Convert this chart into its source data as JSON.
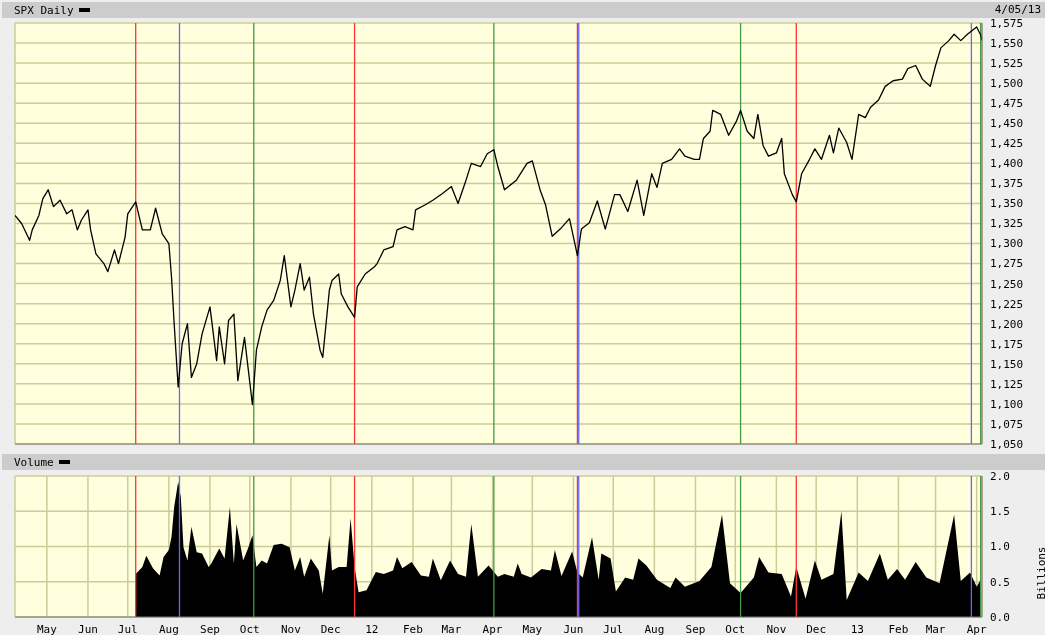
{
  "chart_data": [
    {
      "type": "line",
      "legend": "top left",
      "grid": true,
      "tick_labels": "y",
      "annotations": [
        "4/05/13"
      ],
      "xlim": [
        "2011-04-07",
        "2013-04-05"
      ],
      "xticks": [
        {
          "value": "2011-05-01",
          "label": null
        },
        {
          "value": "2011-06-01",
          "label": null
        },
        {
          "value": "2011-07-01",
          "label": null
        },
        {
          "value": "2011-08-01",
          "label": null
        },
        {
          "value": "2011-09-01",
          "label": null
        },
        {
          "value": "2011-10-01",
          "label": null
        },
        {
          "value": "2011-11-01",
          "label": null
        },
        {
          "value": "2011-12-01",
          "label": null
        },
        {
          "value": "2012-01-01",
          "label": null
        },
        {
          "value": "2012-02-01",
          "label": null
        },
        {
          "value": "2012-03-01",
          "label": null
        },
        {
          "value": "2012-04-01",
          "label": null
        },
        {
          "value": "2012-05-01",
          "label": null
        },
        {
          "value": "2012-06-01",
          "label": null
        },
        {
          "value": "2012-07-01",
          "label": null
        },
        {
          "value": "2012-08-01",
          "label": null
        },
        {
          "value": "2012-09-01",
          "label": null
        },
        {
          "value": "2012-10-01",
          "label": null
        },
        {
          "value": "2012-11-01",
          "label": null
        },
        {
          "value": "2012-12-01",
          "label": null
        },
        {
          "value": "2013-01-01",
          "label": null
        },
        {
          "value": "2013-02-01",
          "label": null
        },
        {
          "value": "2013-03-01",
          "label": null
        },
        {
          "value": "2013-04-01",
          "label": null
        }
      ],
      "ylim": [
        1050,
        1575
      ],
      "yticks": [
        {
          "value": 1050,
          "label": "1,050"
        },
        {
          "value": 1075,
          "label": "1,075"
        },
        {
          "value": 1100,
          "label": "1,100"
        },
        {
          "value": 1125,
          "label": "1,125"
        },
        {
          "value": 1150,
          "label": "1,150"
        },
        {
          "value": 1175,
          "label": "1,175"
        },
        {
          "value": 1200,
          "label": "1,200"
        },
        {
          "value": 1225,
          "label": "1,225"
        },
        {
          "value": 1250,
          "label": "1,250"
        },
        {
          "value": 1275,
          "label": "1,275"
        },
        {
          "value": 1300,
          "label": "1,300"
        },
        {
          "value": 1325,
          "label": "1,325"
        },
        {
          "value": 1350,
          "label": "1,350"
        },
        {
          "value": 1375,
          "label": "1,375"
        },
        {
          "value": 1400,
          "label": "1,400"
        },
        {
          "value": 1425,
          "label": "1,425"
        },
        {
          "value": 1450,
          "label": "1,450"
        },
        {
          "value": 1475,
          "label": "1,475"
        },
        {
          "value": 1500,
          "label": "1,500"
        },
        {
          "value": 1525,
          "label": "1,525"
        },
        {
          "value": 1550,
          "label": "1,550"
        },
        {
          "value": 1575,
          "label": "1,575"
        }
      ],
      "ref_lines": [
        {
          "axis": "x",
          "value": "2011-07-07",
          "color": "#ff3333"
        },
        {
          "axis": "x",
          "value": "2011-08-09",
          "color": "#6666ff"
        },
        {
          "axis": "x",
          "value": "2011-10-04",
          "color": "#449944"
        },
        {
          "axis": "x",
          "value": "2011-12-19",
          "color": "#ff3333"
        },
        {
          "axis": "x",
          "value": "2012-04-02",
          "color": "#449944"
        },
        {
          "axis": "x",
          "value": "2012-06-04",
          "color": "#ff3333"
        },
        {
          "axis": "x",
          "value": "2012-06-05",
          "color": "#6666ff"
        },
        {
          "axis": "x",
          "value": "2012-10-05",
          "color": "#449944"
        },
        {
          "axis": "x",
          "value": "2012-11-16",
          "color": "#ff3333"
        },
        {
          "axis": "x",
          "value": "2013-03-28",
          "color": "#6666ff"
        },
        {
          "axis": "x",
          "value": "2013-04-04",
          "color": "#449944"
        }
      ],
      "series": [
        {
          "name": "SPX Daily",
          "color": "#000000",
          "x": [
            "2011-04-07",
            "2011-04-12",
            "2011-04-18",
            "2011-04-20",
            "2011-04-25",
            "2011-04-28",
            "2011-05-02",
            "2011-05-06",
            "2011-05-11",
            "2011-05-16",
            "2011-05-20",
            "2011-05-24",
            "2011-05-27",
            "2011-06-01",
            "2011-06-03",
            "2011-06-07",
            "2011-06-13",
            "2011-06-16",
            "2011-06-21",
            "2011-06-24",
            "2011-06-29",
            "2011-07-01",
            "2011-07-07",
            "2011-07-12",
            "2011-07-18",
            "2011-07-22",
            "2011-07-27",
            "2011-08-01",
            "2011-08-03",
            "2011-08-05",
            "2011-08-08",
            "2011-08-11",
            "2011-08-15",
            "2011-08-18",
            "2011-08-22",
            "2011-08-26",
            "2011-09-01",
            "2011-09-06",
            "2011-09-08",
            "2011-09-12",
            "2011-09-15",
            "2011-09-19",
            "2011-09-22",
            "2011-09-27",
            "2011-10-03",
            "2011-10-06",
            "2011-10-10",
            "2011-10-14",
            "2011-10-19",
            "2011-10-24",
            "2011-10-27",
            "2011-11-01",
            "2011-11-04",
            "2011-11-08",
            "2011-11-11",
            "2011-11-15",
            "2011-11-18",
            "2011-11-23",
            "2011-11-25",
            "2011-11-30",
            "2011-12-02",
            "2011-12-07",
            "2011-12-09",
            "2011-12-14",
            "2011-12-19",
            "2011-12-21",
            "2011-12-27",
            "2012-01-03",
            "2012-01-05",
            "2012-01-10",
            "2012-01-17",
            "2012-01-20",
            "2012-01-26",
            "2012-02-01",
            "2012-02-03",
            "2012-02-10",
            "2012-02-16",
            "2012-02-23",
            "2012-03-01",
            "2012-03-06",
            "2012-03-12",
            "2012-03-16",
            "2012-03-23",
            "2012-03-28",
            "2012-04-02",
            "2012-04-05",
            "2012-04-10",
            "2012-04-19",
            "2012-04-27",
            "2012-05-01",
            "2012-05-07",
            "2012-05-11",
            "2012-05-16",
            "2012-05-22",
            "2012-05-29",
            "2012-06-04",
            "2012-06-07",
            "2012-06-13",
            "2012-06-19",
            "2012-06-25",
            "2012-07-02",
            "2012-07-06",
            "2012-07-12",
            "2012-07-19",
            "2012-07-24",
            "2012-07-30",
            "2012-08-03",
            "2012-08-07",
            "2012-08-14",
            "2012-08-20",
            "2012-08-24",
            "2012-08-31",
            "2012-09-04",
            "2012-09-07",
            "2012-09-12",
            "2012-09-14",
            "2012-09-20",
            "2012-09-26",
            "2012-10-02",
            "2012-10-05",
            "2012-10-10",
            "2012-10-15",
            "2012-10-18",
            "2012-10-22",
            "2012-10-26",
            "2012-11-01",
            "2012-11-05",
            "2012-11-07",
            "2012-11-13",
            "2012-11-16",
            "2012-11-20",
            "2012-11-26",
            "2012-11-30",
            "2012-12-05",
            "2012-12-11",
            "2012-12-14",
            "2012-12-18",
            "2012-12-24",
            "2012-12-28",
            "2013-01-02",
            "2013-01-07",
            "2013-01-11",
            "2013-01-17",
            "2013-01-22",
            "2013-01-28",
            "2013-02-04",
            "2013-02-08",
            "2013-02-14",
            "2013-02-19",
            "2013-02-25",
            "2013-03-01",
            "2013-03-05",
            "2013-03-11",
            "2013-03-15",
            "2013-03-20",
            "2013-03-25",
            "2013-04-01",
            "2013-04-04",
            "2013-04-05"
          ],
          "values": [
            1335,
            1325,
            1304,
            1317,
            1335,
            1356,
            1367,
            1346,
            1354,
            1337,
            1342,
            1317,
            1329,
            1342,
            1317,
            1287,
            1275,
            1265,
            1292,
            1275,
            1308,
            1337,
            1352,
            1317,
            1317,
            1344,
            1312,
            1300,
            1258,
            1200,
            1121,
            1175,
            1200,
            1133,
            1150,
            1187,
            1221,
            1154,
            1196,
            1150,
            1204,
            1212,
            1129,
            1183,
            1099,
            1167,
            1196,
            1217,
            1229,
            1254,
            1285,
            1221,
            1242,
            1275,
            1242,
            1258,
            1212,
            1167,
            1158,
            1242,
            1254,
            1262,
            1237,
            1221,
            1208,
            1246,
            1262,
            1271,
            1275,
            1292,
            1296,
            1317,
            1321,
            1317,
            1342,
            1348,
            1354,
            1362,
            1371,
            1350,
            1379,
            1400,
            1396,
            1412,
            1417,
            1396,
            1367,
            1379,
            1400,
            1403,
            1366,
            1348,
            1309,
            1318,
            1331,
            1285,
            1318,
            1326,
            1353,
            1318,
            1361,
            1361,
            1340,
            1379,
            1335,
            1387,
            1370,
            1400,
            1405,
            1418,
            1409,
            1405,
            1405,
            1431,
            1440,
            1466,
            1461,
            1435,
            1453,
            1466,
            1440,
            1431,
            1461,
            1422,
            1409,
            1413,
            1431,
            1387,
            1361,
            1352,
            1387,
            1405,
            1418,
            1405,
            1435,
            1413,
            1444,
            1426,
            1405,
            1461,
            1457,
            1470,
            1479,
            1496,
            1503,
            1505,
            1518,
            1522,
            1505,
            1496,
            1522,
            1544,
            1553,
            1561,
            1553,
            1561,
            1570,
            1560,
            1553
          ]
        }
      ]
    },
    {
      "type": "area",
      "legend": "top left",
      "grid": true,
      "ylabel": "Billions",
      "xlim": [
        "2011-04-07",
        "2013-04-05"
      ],
      "xticks": [
        {
          "value": "2011-05-01",
          "label": "May"
        },
        {
          "value": "2011-06-01",
          "label": "Jun"
        },
        {
          "value": "2011-07-01",
          "label": "Jul"
        },
        {
          "value": "2011-08-01",
          "label": "Aug"
        },
        {
          "value": "2011-09-01",
          "label": "Sep"
        },
        {
          "value": "2011-10-01",
          "label": "Oct"
        },
        {
          "value": "2011-11-01",
          "label": "Nov"
        },
        {
          "value": "2011-12-01",
          "label": "Dec"
        },
        {
          "value": "2012-01-01",
          "label": "12"
        },
        {
          "value": "2012-02-01",
          "label": "Feb"
        },
        {
          "value": "2012-03-01",
          "label": "Mar"
        },
        {
          "value": "2012-04-01",
          "label": "Apr"
        },
        {
          "value": "2012-05-01",
          "label": "May"
        },
        {
          "value": "2012-06-01",
          "label": "Jun"
        },
        {
          "value": "2012-07-01",
          "label": "Jul"
        },
        {
          "value": "2012-08-01",
          "label": "Aug"
        },
        {
          "value": "2012-09-01",
          "label": "Sep"
        },
        {
          "value": "2012-10-01",
          "label": "Oct"
        },
        {
          "value": "2012-11-01",
          "label": "Nov"
        },
        {
          "value": "2012-12-01",
          "label": "Dec"
        },
        {
          "value": "2013-01-01",
          "label": "13"
        },
        {
          "value": "2013-02-01",
          "label": "Feb"
        },
        {
          "value": "2013-03-01",
          "label": "Mar"
        },
        {
          "value": "2013-04-01",
          "label": "Apr"
        }
      ],
      "ylim": [
        0,
        2
      ],
      "yticks": [
        {
          "value": 0,
          "label": "0.0"
        },
        0.5,
        {
          "value": 1,
          "label": "1.0"
        },
        1.5,
        {
          "value": 2,
          "label": "2.0"
        }
      ],
      "ref_lines": [
        {
          "axis": "x",
          "value": "2011-07-07",
          "color": "#ff3333"
        },
        {
          "axis": "x",
          "value": "2011-08-09",
          "color": "#6666ff"
        },
        {
          "axis": "x",
          "value": "2011-10-04",
          "color": "#449944"
        },
        {
          "axis": "x",
          "value": "2011-12-19",
          "color": "#ff3333"
        },
        {
          "axis": "x",
          "value": "2012-04-02",
          "color": "#449944"
        },
        {
          "axis": "x",
          "value": "2012-06-04",
          "color": "#ff3333"
        },
        {
          "axis": "x",
          "value": "2012-06-05",
          "color": "#6666ff"
        },
        {
          "axis": "x",
          "value": "2012-10-05",
          "color": "#449944"
        },
        {
          "axis": "x",
          "value": "2012-11-16",
          "color": "#ff3333"
        },
        {
          "axis": "x",
          "value": "2013-03-28",
          "color": "#6666ff"
        },
        {
          "axis": "x",
          "value": "2013-04-04",
          "color": "#449944"
        }
      ],
      "series": [
        {
          "name": "Volume",
          "color": "#000000",
          "x": [
            "2011-07-07",
            "2011-07-12",
            "2011-07-15",
            "2011-07-20",
            "2011-07-25",
            "2011-07-28",
            "2011-08-01",
            "2011-08-03",
            "2011-08-05",
            "2011-08-08",
            "2011-08-10",
            "2011-08-12",
            "2011-08-15",
            "2011-08-18",
            "2011-08-22",
            "2011-08-26",
            "2011-08-31",
            "2011-09-02",
            "2011-09-08",
            "2011-09-12",
            "2011-09-16",
            "2011-09-19",
            "2011-09-21",
            "2011-09-26",
            "2011-09-30",
            "2011-10-03",
            "2011-10-06",
            "2011-10-10",
            "2011-10-14",
            "2011-10-19",
            "2011-10-25",
            "2011-10-31",
            "2011-11-04",
            "2011-11-08",
            "2011-11-11",
            "2011-11-16",
            "2011-11-22",
            "2011-11-25",
            "2011-11-30",
            "2011-12-02",
            "2011-12-07",
            "2011-12-13",
            "2011-12-16",
            "2011-12-19",
            "2011-12-22",
            "2011-12-28",
            "2012-01-04",
            "2012-01-10",
            "2012-01-17",
            "2012-01-20",
            "2012-01-24",
            "2012-01-31",
            "2012-02-07",
            "2012-02-13",
            "2012-02-16",
            "2012-02-22",
            "2012-02-29",
            "2012-03-06",
            "2012-03-12",
            "2012-03-16",
            "2012-03-21",
            "2012-03-29",
            "2012-04-05",
            "2012-04-10",
            "2012-04-17",
            "2012-04-20",
            "2012-04-23",
            "2012-04-30",
            "2012-05-08",
            "2012-05-15",
            "2012-05-18",
            "2012-05-23",
            "2012-05-31",
            "2012-06-04",
            "2012-06-08",
            "2012-06-15",
            "2012-06-20",
            "2012-06-22",
            "2012-06-29",
            "2012-07-03",
            "2012-07-10",
            "2012-07-16",
            "2012-07-20",
            "2012-07-26",
            "2012-08-03",
            "2012-08-13",
            "2012-08-17",
            "2012-08-24",
            "2012-09-04",
            "2012-09-13",
            "2012-09-21",
            "2012-09-27",
            "2012-10-05",
            "2012-10-15",
            "2012-10-19",
            "2012-10-26",
            "2012-11-05",
            "2012-11-12",
            "2012-11-16",
            "2012-11-23",
            "2012-11-30",
            "2012-12-05",
            "2012-12-14",
            "2012-12-20",
            "2012-12-24",
            "2013-01-02",
            "2013-01-09",
            "2013-01-18",
            "2013-01-24",
            "2013-01-31",
            "2013-02-06",
            "2013-02-14",
            "2013-02-22",
            "2013-03-04",
            "2013-03-15",
            "2013-03-20",
            "2013-03-27",
            "2013-04-01",
            "2013-04-04"
          ],
          "values": [
            0.61,
            0.71,
            0.87,
            0.69,
            0.59,
            0.85,
            0.95,
            1.14,
            1.56,
            1.92,
            1.7,
            0.99,
            0.8,
            1.28,
            0.92,
            0.9,
            0.71,
            0.76,
            0.97,
            0.83,
            1.56,
            0.76,
            1.32,
            0.8,
            0.99,
            1.16,
            0.71,
            0.8,
            0.76,
            1.02,
            1.04,
            0.99,
            0.66,
            0.85,
            0.57,
            0.83,
            0.66,
            0.33,
            1.16,
            0.66,
            0.71,
            0.71,
            1.4,
            0.71,
            0.35,
            0.38,
            0.64,
            0.61,
            0.66,
            0.85,
            0.69,
            0.78,
            0.59,
            0.57,
            0.83,
            0.52,
            0.8,
            0.61,
            0.57,
            1.32,
            0.57,
            0.73,
            0.57,
            0.61,
            0.57,
            0.76,
            0.61,
            0.56,
            0.68,
            0.66,
            0.95,
            0.58,
            0.93,
            0.63,
            0.56,
            1.13,
            0.53,
            0.9,
            0.83,
            0.36,
            0.56,
            0.53,
            0.83,
            0.73,
            0.53,
            0.41,
            0.56,
            0.43,
            0.51,
            0.71,
            1.45,
            0.48,
            0.34,
            0.56,
            0.85,
            0.63,
            0.61,
            0.29,
            0.71,
            0.26,
            0.8,
            0.53,
            0.61,
            1.5,
            0.24,
            0.63,
            0.51,
            0.9,
            0.53,
            0.68,
            0.53,
            0.78,
            0.56,
            0.48,
            1.45,
            0.51,
            0.63,
            0.43,
            0.53
          ]
        }
      ]
    }
  ]
}
